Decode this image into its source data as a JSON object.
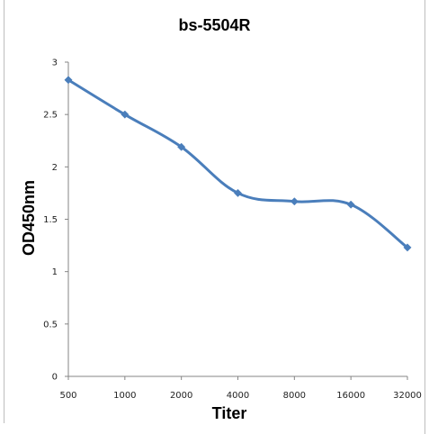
{
  "chart_data": {
    "type": "line",
    "title": "bs-5504R",
    "xlabel": "Titer",
    "ylabel": "OD450nm",
    "categories": [
      "500",
      "1000",
      "2000",
      "4000",
      "8000",
      "16000",
      "32000"
    ],
    "series": [
      {
        "values": [
          2.83,
          2.5,
          2.19,
          1.75,
          1.67,
          1.64,
          1.23
        ],
        "color": "#4a7ebb"
      }
    ],
    "yticks": [
      "0",
      "0.5",
      "1",
      "1.5",
      "2",
      "2.5",
      "3"
    ],
    "ylim": [
      0,
      3
    ],
    "grid": false,
    "legend": "none",
    "smooth": true,
    "marker": "diamond"
  }
}
